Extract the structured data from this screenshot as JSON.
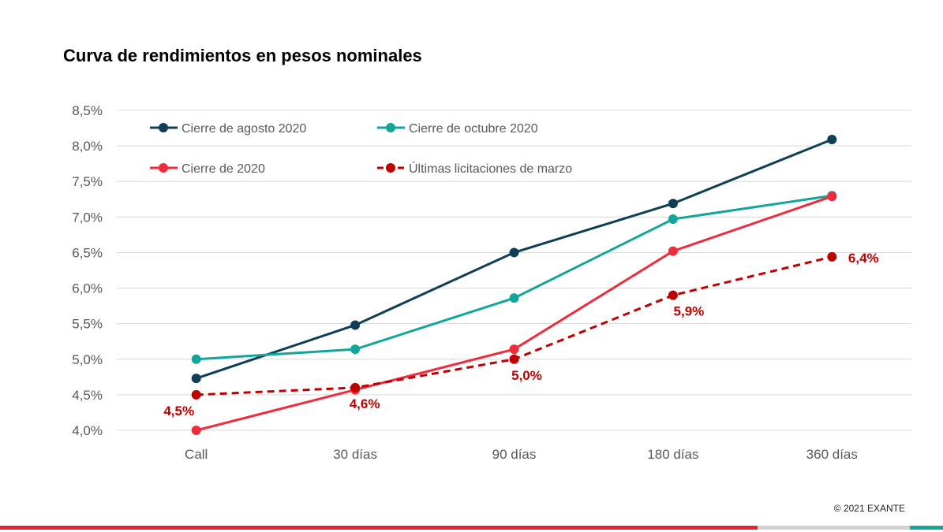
{
  "title": "Curva de rendimientos en pesos nominales",
  "copyright": "© 2021 EXANTE",
  "colors": {
    "agosto": "#0f3e57",
    "octubre": "#12a69b",
    "cierre2020": "#ef2b3c",
    "marzo": "#c00000",
    "grid": "#d9d9d9",
    "axis_text": "#595959",
    "bar_red": "#e8232f",
    "bar_grey": "#d0d0d0",
    "bar_teal": "#12a69b"
  },
  "chart_data": {
    "type": "line",
    "title": "Curva de rendimientos en pesos nominales",
    "categories": [
      "Call",
      "30 días",
      "90 días",
      "180 días",
      "360 días"
    ],
    "ylim": [
      4.0,
      8.5
    ],
    "yticks": [
      "4,0%",
      "4,5%",
      "5,0%",
      "5,5%",
      "6,0%",
      "6,5%",
      "7,0%",
      "7,5%",
      "8,0%",
      "8,5%"
    ],
    "grid": true,
    "legend_position": "top-left",
    "series": [
      {
        "name": "Cierre de agosto 2020",
        "values": [
          4.73,
          5.48,
          6.5,
          7.19,
          8.09
        ],
        "color": "#0f3e57",
        "dashed": false
      },
      {
        "name": "Cierre de octubre 2020",
        "values": [
          5.0,
          5.14,
          5.86,
          6.97,
          7.3
        ],
        "color": "#12a69b",
        "dashed": false
      },
      {
        "name": "Cierre de 2020",
        "values": [
          4.0,
          4.57,
          5.14,
          6.52,
          7.29
        ],
        "color": "#ef2b3c",
        "dashed": false
      },
      {
        "name": "Últimas licitaciones de marzo",
        "values": [
          4.5,
          4.6,
          5.0,
          5.9,
          6.44
        ],
        "color": "#c00000",
        "dashed": true,
        "labels": [
          "4,5%",
          "4,6%",
          "5,0%",
          "5,9%",
          "6,4%"
        ]
      }
    ]
  }
}
